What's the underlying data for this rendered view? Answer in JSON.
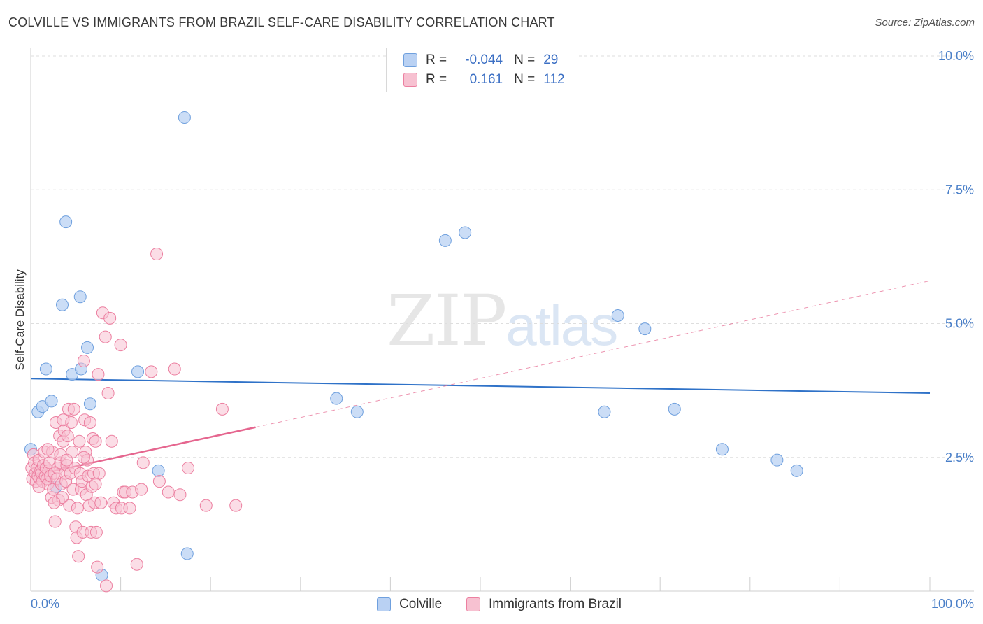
{
  "header": {
    "title": "COLVILLE VS IMMIGRANTS FROM BRAZIL SELF-CARE DISABILITY CORRELATION CHART",
    "source": "Source: ZipAtlas.com"
  },
  "watermark": {
    "zip": "ZIP",
    "atlas": "atlas"
  },
  "legend": {
    "rows": [
      {
        "r_label": "R =",
        "r_value": "-0.044",
        "n_label": "N =",
        "n_value": "29"
      },
      {
        "r_label": "R =",
        "r_value": "0.161",
        "n_label": "N =",
        "n_value": "112"
      }
    ]
  },
  "bottom_legend": {
    "series1": "Colville",
    "series2": "Immigrants from Brazil"
  },
  "colors": {
    "blue_fill": "#b9d1f3",
    "blue_stroke": "#6fa0de",
    "blue_line": "#2f72c8",
    "pink_fill": "#f7c1d1",
    "pink_stroke": "#ec7fa0",
    "pink_line": "#e5668f",
    "grid": "#dedede",
    "axis_text": "#4a7fc8"
  },
  "chart_data": {
    "type": "scatter",
    "title": "COLVILLE VS IMMIGRANTS FROM BRAZIL SELF-CARE DISABILITY CORRELATION CHART",
    "xlabel": "",
    "ylabel": "Self-Care Disability",
    "xlim": [
      0,
      100
    ],
    "ylim": [
      0,
      10
    ],
    "x_tick_labels": [
      "0.0%",
      "100.0%"
    ],
    "y_ticks": [
      2.5,
      5.0,
      7.5,
      10.0
    ],
    "y_tick_labels": [
      "2.5%",
      "5.0%",
      "7.5%",
      "10.0%"
    ],
    "grid": true,
    "series": [
      {
        "name": "Colville",
        "color": "blue",
        "r": -0.044,
        "n": 29,
        "trend": {
          "x": [
            0,
            100
          ],
          "y": [
            3.97,
            3.7
          ],
          "dashed_from": null
        },
        "points": [
          [
            0.0,
            2.65
          ],
          [
            0.8,
            3.35
          ],
          [
            1.3,
            3.45
          ],
          [
            1.7,
            4.15
          ],
          [
            2.3,
            3.55
          ],
          [
            2.8,
            1.95
          ],
          [
            3.5,
            5.35
          ],
          [
            3.9,
            6.9
          ],
          [
            4.6,
            4.05
          ],
          [
            5.5,
            5.5
          ],
          [
            5.6,
            4.15
          ],
          [
            6.3,
            4.55
          ],
          [
            6.6,
            3.5
          ],
          [
            7.9,
            0.3
          ],
          [
            11.9,
            4.1
          ],
          [
            14.2,
            2.25
          ],
          [
            17.1,
            8.85
          ],
          [
            17.4,
            0.7
          ],
          [
            34.0,
            3.6
          ],
          [
            36.3,
            3.35
          ],
          [
            46.1,
            6.55
          ],
          [
            48.3,
            6.7
          ],
          [
            63.8,
            3.35
          ],
          [
            65.3,
            5.15
          ],
          [
            68.3,
            4.9
          ],
          [
            71.6,
            3.4
          ],
          [
            76.9,
            2.65
          ],
          [
            83.0,
            2.45
          ],
          [
            85.2,
            2.25
          ]
        ]
      },
      {
        "name": "Immigrants from Brazil",
        "color": "pink",
        "r": 0.161,
        "n": 112,
        "trend": {
          "x": [
            0,
            100
          ],
          "y": [
            2.15,
            5.8
          ],
          "solid_until": 25
        },
        "points": [
          [
            0.1,
            2.3
          ],
          [
            0.2,
            2.1
          ],
          [
            0.3,
            2.55
          ],
          [
            0.4,
            2.4
          ],
          [
            0.5,
            2.2
          ],
          [
            0.6,
            2.05
          ],
          [
            0.7,
            2.3
          ],
          [
            0.8,
            2.15
          ],
          [
            0.9,
            2.45
          ],
          [
            1.0,
            2.1
          ],
          [
            1.1,
            2.25
          ],
          [
            1.2,
            2.2
          ],
          [
            1.3,
            2.05
          ],
          [
            1.4,
            2.35
          ],
          [
            1.5,
            2.6
          ],
          [
            1.6,
            2.15
          ],
          [
            1.7,
            2.3
          ],
          [
            1.8,
            2.1
          ],
          [
            1.9,
            2.0
          ],
          [
            2.0,
            2.25
          ],
          [
            2.1,
            2.4
          ],
          [
            2.2,
            2.15
          ],
          [
            2.3,
            1.75
          ],
          [
            2.4,
            2.6
          ],
          [
            2.5,
            1.9
          ],
          [
            2.6,
            2.2
          ],
          [
            2.7,
            1.3
          ],
          [
            2.8,
            3.15
          ],
          [
            2.9,
            2.1
          ],
          [
            3.0,
            2.3
          ],
          [
            3.1,
            1.7
          ],
          [
            3.2,
            2.9
          ],
          [
            3.3,
            2.4
          ],
          [
            3.4,
            2.0
          ],
          [
            3.5,
            1.75
          ],
          [
            3.6,
            2.8
          ],
          [
            3.7,
            3.0
          ],
          [
            3.8,
            2.2
          ],
          [
            3.9,
            2.05
          ],
          [
            4.0,
            2.35
          ],
          [
            4.1,
            2.9
          ],
          [
            4.2,
            3.4
          ],
          [
            4.3,
            1.6
          ],
          [
            4.4,
            2.2
          ],
          [
            4.5,
            3.15
          ],
          [
            4.6,
            2.6
          ],
          [
            4.7,
            1.9
          ],
          [
            4.8,
            3.4
          ],
          [
            4.9,
            2.3
          ],
          [
            5.0,
            1.2
          ],
          [
            5.1,
            1.0
          ],
          [
            5.2,
            1.55
          ],
          [
            5.3,
            0.65
          ],
          [
            5.4,
            2.8
          ],
          [
            5.5,
            2.2
          ],
          [
            5.6,
            1.9
          ],
          [
            5.7,
            2.05
          ],
          [
            5.8,
            1.1
          ],
          [
            5.9,
            4.3
          ],
          [
            6.0,
            3.2
          ],
          [
            6.1,
            2.6
          ],
          [
            6.2,
            1.8
          ],
          [
            6.3,
            2.45
          ],
          [
            6.4,
            2.15
          ],
          [
            6.5,
            1.6
          ],
          [
            6.6,
            3.15
          ],
          [
            6.7,
            1.1
          ],
          [
            6.8,
            1.95
          ],
          [
            6.9,
            2.85
          ],
          [
            7.0,
            2.2
          ],
          [
            7.1,
            1.65
          ],
          [
            7.2,
            2.8
          ],
          [
            7.3,
            1.1
          ],
          [
            7.4,
            0.45
          ],
          [
            7.5,
            4.05
          ],
          [
            7.6,
            2.2
          ],
          [
            7.8,
            1.65
          ],
          [
            8.0,
            5.2
          ],
          [
            8.3,
            4.75
          ],
          [
            8.4,
            0.1
          ],
          [
            8.6,
            3.7
          ],
          [
            8.8,
            5.1
          ],
          [
            9.0,
            2.8
          ],
          [
            9.2,
            1.65
          ],
          [
            9.5,
            1.55
          ],
          [
            10.0,
            4.6
          ],
          [
            10.1,
            1.55
          ],
          [
            10.3,
            1.85
          ],
          [
            10.5,
            1.85
          ],
          [
            11.0,
            1.55
          ],
          [
            11.3,
            1.85
          ],
          [
            11.8,
            0.5
          ],
          [
            12.3,
            1.9
          ],
          [
            12.5,
            2.4
          ],
          [
            13.4,
            4.1
          ],
          [
            14.0,
            6.3
          ],
          [
            14.3,
            2.05
          ],
          [
            15.3,
            1.85
          ],
          [
            16.0,
            4.15
          ],
          [
            16.6,
            1.8
          ],
          [
            17.5,
            2.3
          ],
          [
            19.5,
            1.6
          ],
          [
            21.3,
            3.4
          ],
          [
            22.8,
            1.6
          ],
          [
            3.3,
            2.55
          ],
          [
            1.9,
            2.65
          ],
          [
            2.6,
            1.65
          ],
          [
            4.0,
            2.45
          ],
          [
            5.9,
            2.5
          ],
          [
            0.9,
            1.95
          ],
          [
            3.6,
            3.2
          ],
          [
            7.2,
            2.0
          ]
        ]
      }
    ]
  }
}
